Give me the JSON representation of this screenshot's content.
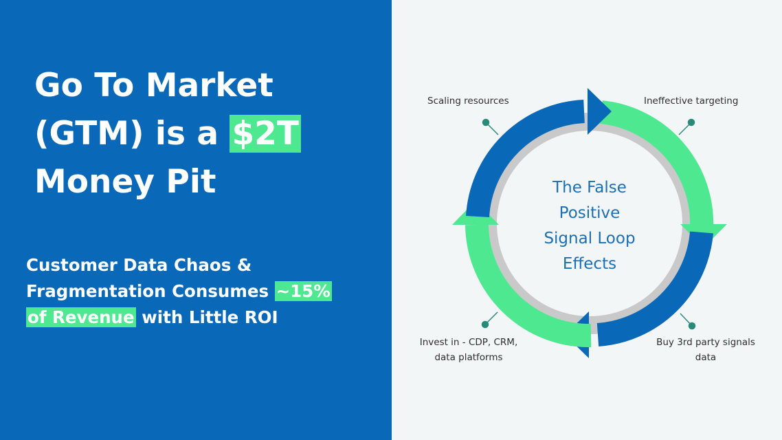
{
  "left": {
    "headline": {
      "line1": "Go To Market",
      "line2_prefix": "(GTM) is a ",
      "line2_highlight": "$2T",
      "line3": "Money Pit"
    },
    "subheadline": {
      "line1": "Customer Data Chaos &",
      "line2_prefix": "Fragmentation Consumes ",
      "line2_highlight": "~15%",
      "line3_highlight": "of Revenue",
      "line3_suffix": " with Little ROI"
    }
  },
  "diagram": {
    "center_title": [
      "The False",
      "Positive",
      "Signal Loop",
      "Effects"
    ],
    "stages": {
      "scaling": "Scaling resources",
      "targeting": "Ineffective targeting",
      "buy_line1": "Buy 3rd party signals",
      "buy_line2": "data",
      "invest_line1": "Invest in - CDP, CRM,",
      "invest_line2": "data platforms"
    }
  },
  "colors": {
    "left_bg": "#0a68b8",
    "right_bg": "#f3f6f6",
    "highlight": "#4ee890",
    "ring_blue": "#0a68b8",
    "ring_green": "#4ee890",
    "ring_gray": "#c9c9c9",
    "connector": "#2a8a7a",
    "center_text": "#1b6fb2"
  }
}
